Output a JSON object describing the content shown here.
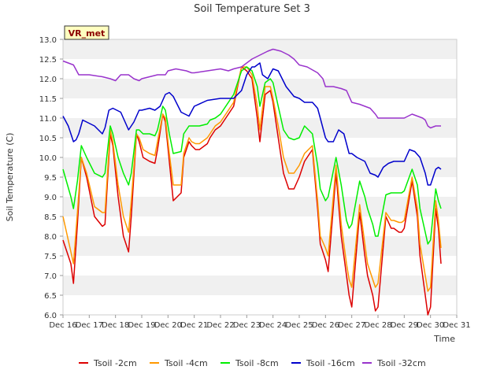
{
  "chart_data": {
    "type": "line",
    "title": "Soil Temperature Set 3",
    "xlabel": "Time",
    "ylabel": "Soil Temperature (C)",
    "site_label": "VR_met",
    "xlim": [
      16,
      31
    ],
    "ylim": [
      6.0,
      13.0
    ],
    "x_ticks": [
      16,
      17,
      18,
      19,
      20,
      21,
      22,
      23,
      24,
      25,
      26,
      27,
      28,
      29,
      30,
      31
    ],
    "x_tick_labels": [
      "Dec 16",
      "Dec 17",
      "Dec 18",
      "Dec 19",
      "Dec 20",
      "Dec 21",
      "Dec 22",
      "Dec 23",
      "Dec 24",
      "Dec 25",
      "Dec 26",
      "Dec 27",
      "Dec 28",
      "Dec 29",
      "Dec 30",
      "Dec 31"
    ],
    "y_ticks": [
      6.0,
      6.5,
      7.0,
      7.5,
      8.0,
      8.5,
      9.0,
      9.5,
      10.0,
      10.5,
      11.0,
      11.5,
      12.0,
      12.5,
      13.0
    ],
    "y_tick_labels": [
      "6.0",
      "6.5",
      "7.0",
      "7.5",
      "8.0",
      "8.5",
      "9.0",
      "9.5",
      "10.0",
      "10.5",
      "11.0",
      "11.5",
      "12.0",
      "12.5",
      "13.0"
    ],
    "legend_position": "bottom",
    "grid": "alternating-bands",
    "series": [
      {
        "name": "Tsoil -2cm",
        "color": "#dd0000",
        "x": [
          16.0,
          16.3,
          16.4,
          16.55,
          16.7,
          16.9,
          17.2,
          17.5,
          17.6,
          17.8,
          17.9,
          18.1,
          18.3,
          18.5,
          18.6,
          18.8,
          18.9,
          19.05,
          19.3,
          19.5,
          19.6,
          19.8,
          19.9,
          20.05,
          20.2,
          20.5,
          20.6,
          20.8,
          20.9,
          21.05,
          21.2,
          21.5,
          21.6,
          21.8,
          22.0,
          22.5,
          22.8,
          23.0,
          23.2,
          23.4,
          23.5,
          23.7,
          23.9,
          24.0,
          24.2,
          24.4,
          24.6,
          24.8,
          25.0,
          25.2,
          25.5,
          25.7,
          25.8,
          26.0,
          26.1,
          26.4,
          26.6,
          26.8,
          26.9,
          27.0,
          27.3,
          27.5,
          27.6,
          27.8,
          27.9,
          28.0,
          28.3,
          28.5,
          28.6,
          28.8,
          28.9,
          29.0,
          29.3,
          29.5,
          29.6,
          29.8,
          29.9,
          30.0,
          30.2,
          30.3,
          30.4
        ],
        "y": [
          7.9,
          7.3,
          6.8,
          8.3,
          10.0,
          9.5,
          8.5,
          8.25,
          8.3,
          10.6,
          10.3,
          9.0,
          8.0,
          7.6,
          8.5,
          10.6,
          10.4,
          10.0,
          9.9,
          9.85,
          10.2,
          11.1,
          10.9,
          9.9,
          8.9,
          9.1,
          10.0,
          10.4,
          10.3,
          10.2,
          10.2,
          10.35,
          10.5,
          10.7,
          10.8,
          11.3,
          12.3,
          12.2,
          12.0,
          11.0,
          10.4,
          11.6,
          11.7,
          11.4,
          10.5,
          9.6,
          9.2,
          9.2,
          9.5,
          9.9,
          10.2,
          8.7,
          7.8,
          7.4,
          7.1,
          9.6,
          8.0,
          7.0,
          6.5,
          6.2,
          8.6,
          7.5,
          7.0,
          6.5,
          6.1,
          6.2,
          8.5,
          8.2,
          8.2,
          8.1,
          8.1,
          8.2,
          9.4,
          8.5,
          7.5,
          6.5,
          6.0,
          6.2,
          8.7,
          8.2,
          7.3
        ]
      },
      {
        "name": "Tsoil -4cm",
        "color": "#ff9900",
        "x": [
          16.0,
          16.3,
          16.4,
          16.55,
          16.7,
          16.9,
          17.2,
          17.5,
          17.6,
          17.8,
          17.9,
          18.1,
          18.3,
          18.5,
          18.6,
          18.8,
          18.9,
          19.05,
          19.3,
          19.5,
          19.6,
          19.8,
          19.9,
          20.05,
          20.2,
          20.5,
          20.6,
          20.8,
          20.9,
          21.05,
          21.2,
          21.5,
          21.6,
          21.8,
          22.0,
          22.5,
          22.8,
          23.0,
          23.2,
          23.4,
          23.5,
          23.7,
          23.9,
          24.0,
          24.2,
          24.4,
          24.6,
          24.8,
          25.0,
          25.2,
          25.5,
          25.7,
          25.8,
          26.0,
          26.1,
          26.4,
          26.6,
          26.8,
          26.9,
          27.0,
          27.3,
          27.5,
          27.6,
          27.8,
          27.9,
          28.0,
          28.3,
          28.5,
          28.6,
          28.8,
          28.9,
          29.0,
          29.3,
          29.5,
          29.6,
          29.8,
          29.9,
          30.0,
          30.2,
          30.3,
          30.4
        ],
        "y": [
          8.5,
          7.6,
          7.3,
          8.6,
          10.0,
          9.6,
          8.75,
          8.6,
          8.6,
          10.7,
          10.4,
          9.3,
          8.5,
          8.1,
          8.9,
          10.6,
          10.5,
          10.2,
          10.1,
          10.05,
          10.4,
          11.1,
          11.0,
          10.1,
          9.3,
          9.3,
          10.1,
          10.5,
          10.4,
          10.35,
          10.35,
          10.5,
          10.6,
          10.8,
          10.9,
          11.4,
          12.3,
          12.3,
          12.1,
          11.3,
          10.7,
          11.8,
          11.8,
          11.5,
          10.8,
          10.0,
          9.6,
          9.6,
          9.8,
          10.1,
          10.3,
          8.9,
          8.0,
          7.7,
          7.5,
          9.8,
          8.3,
          7.3,
          6.9,
          6.7,
          8.8,
          7.8,
          7.3,
          6.9,
          6.7,
          6.8,
          8.6,
          8.4,
          8.4,
          8.35,
          8.35,
          8.4,
          9.5,
          8.7,
          7.8,
          7.0,
          6.6,
          6.7,
          8.9,
          8.4,
          7.7
        ]
      },
      {
        "name": "Tsoil -8cm",
        "color": "#00ee00",
        "x": [
          16.0,
          16.3,
          16.4,
          16.55,
          16.7,
          16.9,
          17.2,
          17.5,
          17.6,
          17.8,
          17.9,
          18.1,
          18.3,
          18.5,
          18.6,
          18.8,
          18.9,
          19.05,
          19.3,
          19.5,
          19.6,
          19.8,
          19.9,
          20.05,
          20.2,
          20.5,
          20.6,
          20.8,
          20.9,
          21.05,
          21.2,
          21.5,
          21.6,
          21.8,
          22.0,
          22.5,
          22.8,
          23.0,
          23.2,
          23.4,
          23.5,
          23.7,
          23.9,
          24.0,
          24.2,
          24.4,
          24.6,
          24.8,
          25.0,
          25.2,
          25.5,
          25.7,
          25.8,
          26.0,
          26.1,
          26.4,
          26.6,
          26.8,
          26.9,
          27.0,
          27.3,
          27.5,
          27.6,
          27.8,
          27.9,
          28.0,
          28.3,
          28.5,
          28.6,
          28.8,
          28.9,
          29.0,
          29.3,
          29.5,
          29.6,
          29.8,
          29.9,
          30.0,
          30.2,
          30.3,
          30.4
        ],
        "y": [
          9.7,
          9.0,
          8.7,
          9.4,
          10.3,
          10.0,
          9.6,
          9.5,
          9.6,
          10.8,
          10.6,
          10.0,
          9.6,
          9.3,
          9.6,
          10.7,
          10.7,
          10.6,
          10.6,
          10.55,
          10.7,
          11.3,
          11.2,
          10.6,
          10.1,
          10.15,
          10.6,
          10.8,
          10.8,
          10.8,
          10.8,
          10.85,
          10.95,
          11.0,
          11.1,
          11.6,
          12.2,
          12.3,
          12.2,
          11.8,
          11.3,
          11.9,
          12.0,
          11.9,
          11.3,
          10.7,
          10.5,
          10.45,
          10.5,
          10.8,
          10.6,
          9.8,
          9.2,
          8.9,
          9.0,
          10.0,
          9.3,
          8.4,
          8.2,
          8.3,
          9.4,
          9.0,
          8.7,
          8.3,
          8.0,
          8.0,
          9.05,
          9.1,
          9.1,
          9.1,
          9.1,
          9.15,
          9.7,
          9.3,
          8.7,
          8.1,
          7.8,
          7.9,
          9.2,
          8.9,
          8.7
        ]
      },
      {
        "name": "Tsoil -16cm",
        "color": "#0000cc",
        "x": [
          16.0,
          16.2,
          16.4,
          16.5,
          16.6,
          16.75,
          16.9,
          17.2,
          17.5,
          17.6,
          17.75,
          17.9,
          18.2,
          18.5,
          18.7,
          18.9,
          19.0,
          19.3,
          19.5,
          19.7,
          19.9,
          20.05,
          20.2,
          20.5,
          20.8,
          21.0,
          21.5,
          22.0,
          22.2,
          22.5,
          22.8,
          23.0,
          23.2,
          23.3,
          23.5,
          23.6,
          23.8,
          24.0,
          24.2,
          24.5,
          24.8,
          25.0,
          25.2,
          25.5,
          25.7,
          25.8,
          26.0,
          26.1,
          26.3,
          26.5,
          26.7,
          26.9,
          27.0,
          27.2,
          27.5,
          27.7,
          27.9,
          28.0,
          28.2,
          28.4,
          28.6,
          28.8,
          28.9,
          29.0,
          29.2,
          29.4,
          29.6,
          29.8,
          29.9,
          30.0,
          30.2,
          30.3,
          30.4
        ],
        "y": [
          11.05,
          10.8,
          10.4,
          10.45,
          10.6,
          10.95,
          10.9,
          10.8,
          10.6,
          10.75,
          11.2,
          11.25,
          11.15,
          10.7,
          10.9,
          11.2,
          11.2,
          11.25,
          11.2,
          11.3,
          11.6,
          11.65,
          11.55,
          11.15,
          11.05,
          11.3,
          11.45,
          11.5,
          11.5,
          11.5,
          11.7,
          12.1,
          12.3,
          12.3,
          12.4,
          12.1,
          12.0,
          12.25,
          12.2,
          11.8,
          11.55,
          11.5,
          11.4,
          11.4,
          11.25,
          11.0,
          10.5,
          10.4,
          10.4,
          10.7,
          10.6,
          10.1,
          10.1,
          10.0,
          9.9,
          9.6,
          9.55,
          9.5,
          9.75,
          9.85,
          9.9,
          9.9,
          9.9,
          9.9,
          10.2,
          10.15,
          10.0,
          9.6,
          9.3,
          9.3,
          9.7,
          9.75,
          9.7
        ]
      },
      {
        "name": "Tsoil -32cm",
        "color": "#9933cc",
        "x": [
          16.0,
          16.2,
          16.4,
          16.6,
          17.0,
          17.5,
          17.8,
          18.0,
          18.2,
          18.5,
          18.7,
          18.9,
          19.0,
          19.3,
          19.6,
          19.9,
          20.0,
          20.3,
          20.7,
          20.9,
          21.0,
          21.5,
          22.0,
          22.3,
          22.5,
          22.8,
          23.0,
          23.2,
          23.5,
          23.8,
          24.0,
          24.3,
          24.6,
          24.8,
          25.0,
          25.3,
          25.7,
          25.9,
          26.0,
          26.3,
          26.6,
          26.8,
          27.0,
          27.3,
          27.5,
          27.7,
          27.9,
          28.0,
          28.5,
          28.9,
          29.0,
          29.3,
          29.5,
          29.7,
          29.8,
          29.9,
          30.0,
          30.2,
          30.4
        ],
        "y": [
          12.45,
          12.4,
          12.35,
          12.1,
          12.1,
          12.05,
          12.0,
          11.95,
          12.1,
          12.1,
          12.0,
          11.95,
          12.0,
          12.05,
          12.1,
          12.1,
          12.2,
          12.25,
          12.2,
          12.15,
          12.15,
          12.2,
          12.25,
          12.2,
          12.25,
          12.3,
          12.4,
          12.5,
          12.6,
          12.7,
          12.75,
          12.7,
          12.6,
          12.5,
          12.35,
          12.3,
          12.15,
          12.0,
          11.8,
          11.8,
          11.75,
          11.7,
          11.4,
          11.35,
          11.3,
          11.25,
          11.1,
          11.0,
          11.0,
          11.0,
          11.0,
          11.1,
          11.05,
          11.0,
          10.95,
          10.8,
          10.75,
          10.8,
          10.8
        ]
      }
    ]
  }
}
